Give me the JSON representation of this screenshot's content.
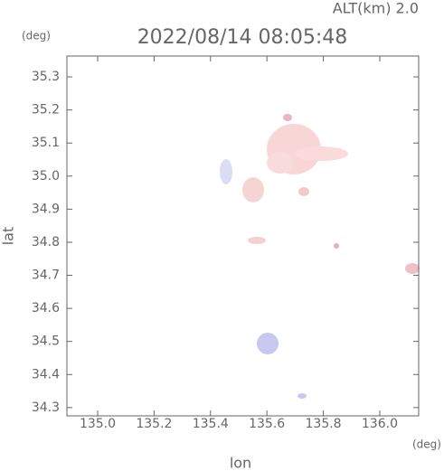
{
  "chart_data": {
    "type": "radar-map",
    "title": "2022/08/14 08:05:48",
    "subtitle": "ALT(km) 2.0",
    "xlabel": "lon",
    "ylabel": "lat",
    "x_unit": "(deg)",
    "y_unit": "(deg)",
    "xlim": [
      134.891,
      136.138
    ],
    "ylim": [
      34.275,
      35.363
    ],
    "xticks": [
      {
        "value": 135,
        "label": "135.0"
      },
      135.2,
      135.4,
      135.6,
      135.8,
      {
        "value": 136,
        "label": "136.0"
      }
    ],
    "yticks": [
      34.3,
      34.4,
      34.5,
      34.6,
      34.7,
      34.8,
      34.9,
      {
        "value": 35,
        "label": "35.0"
      },
      35.1,
      35.2,
      35.3
    ]
  }
}
